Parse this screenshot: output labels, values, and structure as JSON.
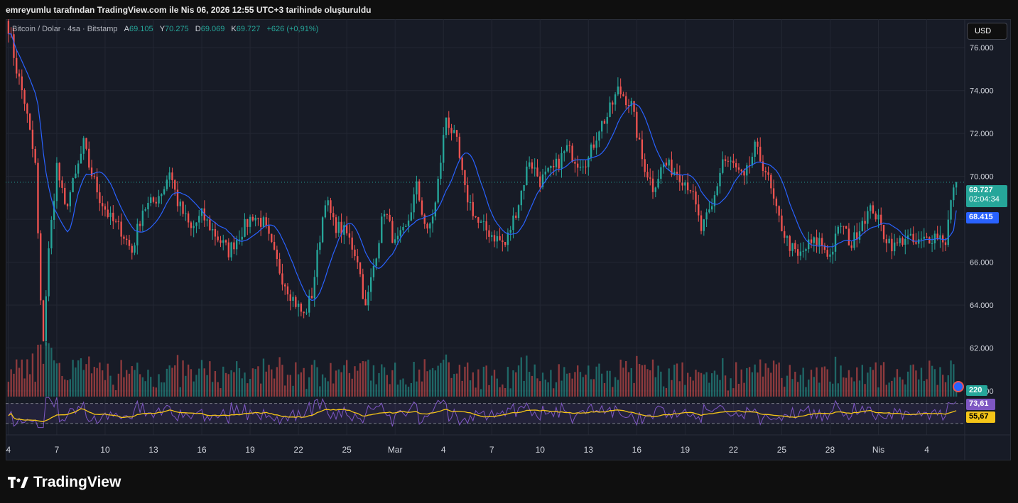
{
  "caption": "emreyumlu tarafından TradingView.com ile Nis 06, 2026 12:55 UTC+3 tarihinde oluşturuldu",
  "legend": {
    "symbol": "Bitcoin / Dolar · 4sa · Bitstamp",
    "open_label": "A",
    "open": "69.105",
    "high_label": "Y",
    "high": "70.275",
    "low_label": "D",
    "low": "69.069",
    "close_label": "K",
    "close": "69.727",
    "change": "+626 (+0,91%)"
  },
  "currency_button": "USD",
  "brand": "TradingView",
  "tags": {
    "price": "69.727",
    "countdown": "02:04:34",
    "ma": "68.415",
    "volume": "220",
    "rsi": "73,61",
    "rsi_ma": "55,67"
  },
  "colors": {
    "up": "#26a69a",
    "down": "#ef5350",
    "ma": "#2962ff",
    "rsi": "#7e57c2",
    "rsi_ma": "#f5c518",
    "background": "#171b26",
    "grid": "#232733"
  },
  "chart_data": {
    "type": "candlestick",
    "ylim": [
      60000,
      77000
    ],
    "y_ticks": [
      "76.000",
      "74.000",
      "72.000",
      "70.000",
      "68.000",
      "66.000",
      "64.000",
      "62.000",
      "60.000"
    ],
    "y_tick_values": [
      76000,
      74000,
      72000,
      70000,
      68000,
      66000,
      64000,
      62000,
      60000
    ],
    "x_tick_labels": [
      "4",
      "7",
      "10",
      "13",
      "16",
      "19",
      "22",
      "25",
      "Mar",
      "4",
      "7",
      "10",
      "13",
      "16",
      "19",
      "22",
      "25",
      "28",
      "Nis",
      "4"
    ],
    "x_tick_positions": [
      0,
      18,
      36,
      54,
      72,
      90,
      108,
      126,
      144,
      162,
      180,
      198,
      216,
      234,
      252,
      270,
      288,
      306,
      324,
      342
    ],
    "candles_per_day": 6,
    "close_keypoints": [
      [
        0,
        77000
      ],
      [
        3,
        75000
      ],
      [
        6,
        73500
      ],
      [
        10,
        70500
      ],
      [
        12,
        64000
      ],
      [
        13,
        62500
      ],
      [
        15,
        66500
      ],
      [
        18,
        70500
      ],
      [
        21,
        68500
      ],
      [
        25,
        70000
      ],
      [
        28,
        71500
      ],
      [
        30,
        70500
      ],
      [
        34,
        69000
      ],
      [
        38,
        68000
      ],
      [
        42,
        67500
      ],
      [
        46,
        66500
      ],
      [
        50,
        68500
      ],
      [
        54,
        68800
      ],
      [
        58,
        69500
      ],
      [
        60,
        70300
      ],
      [
        63,
        68800
      ],
      [
        68,
        67500
      ],
      [
        72,
        68200
      ],
      [
        77,
        67300
      ],
      [
        82,
        66500
      ],
      [
        86,
        67300
      ],
      [
        91,
        68200
      ],
      [
        95,
        67800
      ],
      [
        99,
        66300
      ],
      [
        102,
        65300
      ],
      [
        106,
        64300
      ],
      [
        110,
        63500
      ],
      [
        113,
        64500
      ],
      [
        118,
        69000
      ],
      [
        121,
        67800
      ],
      [
        126,
        67300
      ],
      [
        130,
        66200
      ],
      [
        133,
        63800
      ],
      [
        137,
        66500
      ],
      [
        140,
        68500
      ],
      [
        144,
        66800
      ],
      [
        148,
        67500
      ],
      [
        152,
        69500
      ],
      [
        156,
        67300
      ],
      [
        159,
        68700
      ],
      [
        163,
        72800
      ],
      [
        167,
        71500
      ],
      [
        170,
        69300
      ],
      [
        175,
        67800
      ],
      [
        180,
        67300
      ],
      [
        185,
        66800
      ],
      [
        190,
        68800
      ],
      [
        194,
        70800
      ],
      [
        198,
        69800
      ],
      [
        203,
        70300
      ],
      [
        208,
        71300
      ],
      [
        212,
        70700
      ],
      [
        216,
        70800
      ],
      [
        220,
        72300
      ],
      [
        223,
        72800
      ],
      [
        227,
        74000
      ],
      [
        229,
        73800
      ],
      [
        232,
        73300
      ],
      [
        236,
        70800
      ],
      [
        240,
        69500
      ],
      [
        244,
        70600
      ],
      [
        249,
        70200
      ],
      [
        254,
        69500
      ],
      [
        258,
        67500
      ],
      [
        262,
        68500
      ],
      [
        266,
        70800
      ],
      [
        270,
        70500
      ],
      [
        274,
        69800
      ],
      [
        278,
        71300
      ],
      [
        282,
        70300
      ],
      [
        286,
        68300
      ],
      [
        290,
        67000
      ],
      [
        294,
        66200
      ],
      [
        298,
        66800
      ],
      [
        302,
        67000
      ],
      [
        306,
        66300
      ],
      [
        310,
        67800
      ],
      [
        314,
        66800
      ],
      [
        318,
        68000
      ],
      [
        322,
        68500
      ],
      [
        326,
        67300
      ],
      [
        330,
        66700
      ],
      [
        334,
        67200
      ],
      [
        338,
        66800
      ],
      [
        342,
        67100
      ],
      [
        346,
        67300
      ],
      [
        349,
        67000
      ],
      [
        351,
        68800
      ],
      [
        353,
        69727
      ]
    ],
    "ma_value": 68415,
    "rsi_value": 73.61,
    "rsi_ma_value": 55.67,
    "rsi_levels": [
      70,
      30
    ],
    "volume_last": 220
  }
}
